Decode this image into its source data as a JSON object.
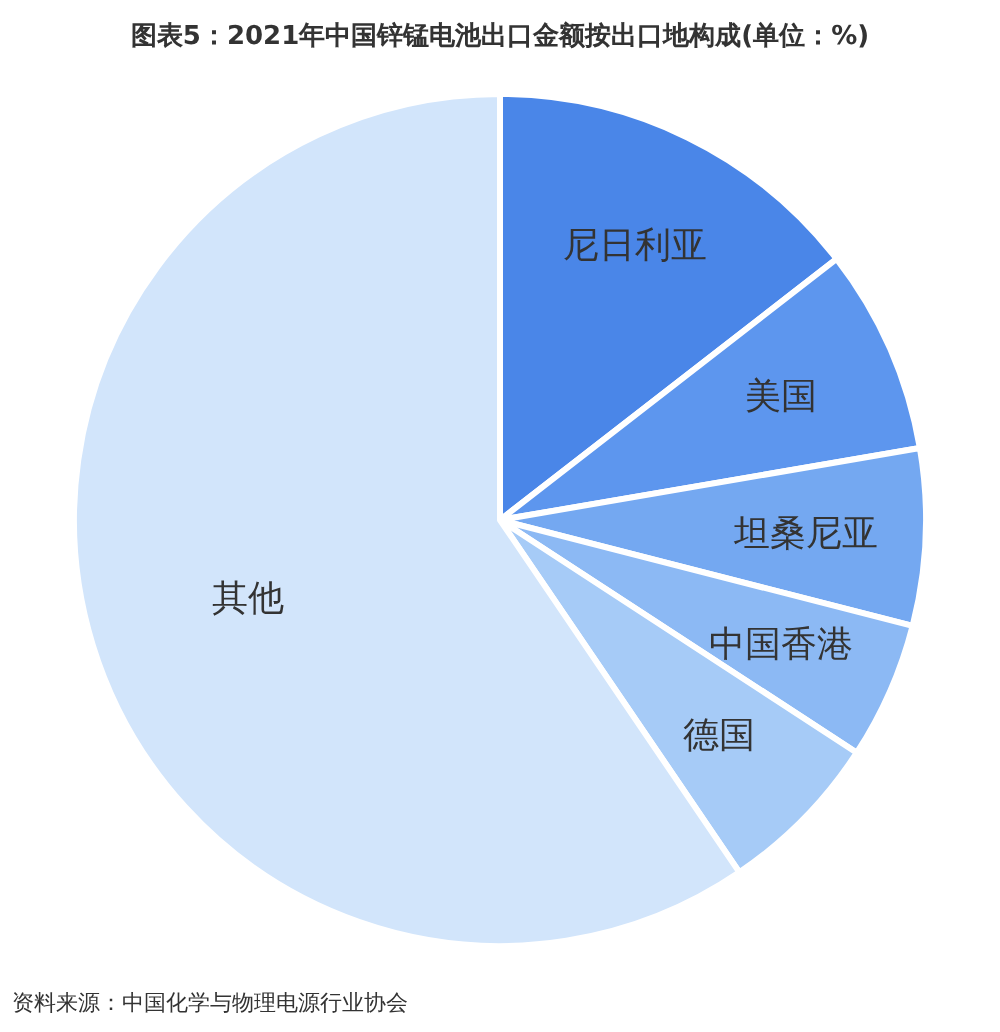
{
  "chart_data": {
    "type": "pie",
    "title": "图表5：2021年中国锌锰电池出口金额按出口地构成(单位：%)",
    "categories": [
      "尼日利亚",
      "美国",
      "坦桑尼亚",
      "中国香港",
      "德国",
      "其他"
    ],
    "values": [
      14.5,
      7.8,
      6.7,
      5.2,
      6.3,
      59.5
    ],
    "colors": [
      "#4a86e8",
      "#5d96ee",
      "#74a8f1",
      "#8cb9f4",
      "#a6cbf7",
      "#d2e5fb"
    ],
    "annotations": [
      "资料来源：中国化学与物理电源行业协会"
    ]
  }
}
